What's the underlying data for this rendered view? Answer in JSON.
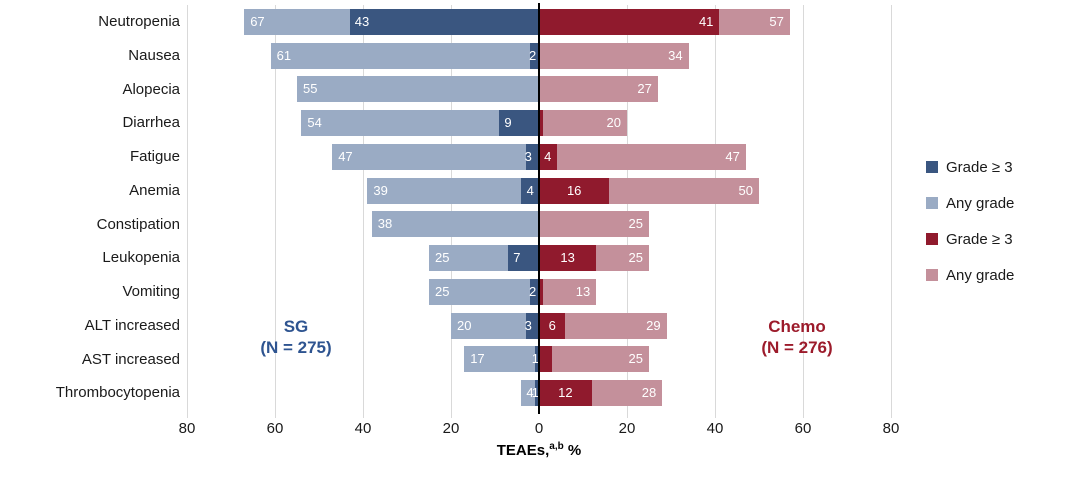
{
  "chart_data": {
    "type": "bar",
    "variant": "diverging-stacked-tornado",
    "xlabel": {
      "prefix": "TEAEs,",
      "superscript": "a,b",
      "suffix": " %"
    },
    "axis_ticks": [
      "80",
      "60",
      "40",
      "20",
      "0",
      "20",
      "40",
      "60",
      "80"
    ],
    "xlim": [
      -80,
      80
    ],
    "grid": true,
    "categories": [
      "Neutropenia",
      "Nausea",
      "Alopecia",
      "Diarrhea",
      "Fatigue",
      "Anemia",
      "Constipation",
      "Leukopenia",
      "Vomiting",
      "ALT increased",
      "AST increased",
      "Thrombocytopenia"
    ],
    "series": [
      {
        "name": "SG Grade ≥ 3",
        "role": "left-inner",
        "color": "#3a5680",
        "values": [
          43,
          2,
          null,
          9,
          3,
          4,
          null,
          7,
          2,
          3,
          1,
          1
        ],
        "labels": [
          "43",
          "2",
          null,
          "9",
          "3",
          "4",
          null,
          "7",
          "2",
          "3",
          "1",
          "1"
        ]
      },
      {
        "name": "SG Any grade",
        "role": "left-outer",
        "color": "#9aabc4",
        "values": [
          67,
          61,
          55,
          54,
          47,
          39,
          38,
          25,
          25,
          20,
          17,
          4
        ],
        "labels": [
          "67",
          "61",
          "55",
          "54",
          "47",
          "39",
          "38",
          "25",
          "25",
          "20",
          "17",
          "4"
        ]
      },
      {
        "name": "Chemo Grade ≥ 3",
        "role": "right-inner",
        "color": "#901a2d",
        "values": [
          41,
          0.3,
          null,
          1,
          4,
          16,
          null,
          13,
          1,
          6,
          3,
          12
        ],
        "labels": [
          "41",
          "< 1",
          null,
          "1",
          "4",
          "16",
          null,
          "13",
          "1",
          "6",
          "3",
          "12"
        ]
      },
      {
        "name": "Chemo Any grade",
        "role": "right-outer",
        "color": "#c4909b",
        "values": [
          57,
          34,
          27,
          20,
          47,
          50,
          25,
          25,
          13,
          29,
          25,
          28
        ],
        "labels": [
          "57",
          "34",
          "27",
          "20",
          "47",
          "50",
          "25",
          "25",
          "13",
          "29",
          "25",
          "28"
        ]
      }
    ],
    "legend": [
      {
        "label": "Grade ≥ 3",
        "color": "#3a5680"
      },
      {
        "label": "Any grade",
        "color": "#9aabc4"
      },
      {
        "label": "Grade ≥ 3",
        "color": "#901a2d"
      },
      {
        "label": "Any grade",
        "color": "#c4909b"
      }
    ],
    "legend_position": "right",
    "group_labels": {
      "left": {
        "line1": "SG",
        "line2": "(N = 275)",
        "color": "#2e5490"
      },
      "right": {
        "line1": "Chemo",
        "line2": "(N = 276)",
        "color": "#9c1b2b"
      }
    }
  }
}
